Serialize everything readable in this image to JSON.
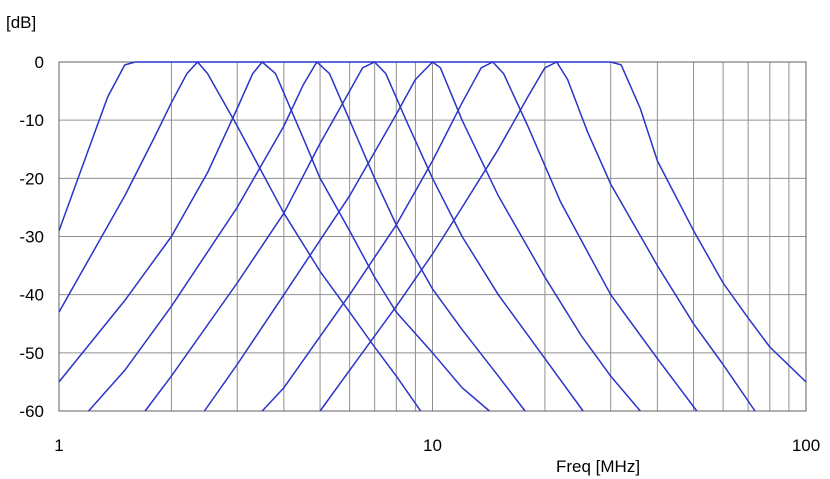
{
  "chart_data": {
    "type": "line",
    "xscale": "log",
    "xlim": [
      1,
      100
    ],
    "ylim": [
      -60,
      0
    ],
    "x_ticks": [
      "1",
      "10",
      "100"
    ],
    "y_ticks": [
      "0",
      "-10",
      "-20",
      "-30",
      "-40",
      "-50",
      "-60"
    ],
    "xlabel": "Freq [MHz]",
    "ylabel": "[dB]",
    "grid": true,
    "line_color": "#2a34c8",
    "grid_color": "#909090",
    "series": [
      {
        "x": [
          1.0,
          1.2,
          1.35,
          1.5,
          1.6,
          30,
          32,
          36,
          40,
          50,
          60,
          70,
          80,
          100
        ],
        "y": [
          -29,
          -15,
          -6,
          -0.5,
          0,
          0,
          -0.5,
          -8,
          -17,
          -29,
          -38,
          -44,
          -49,
          -55
        ]
      },
      {
        "x": [
          1.0,
          1.2,
          1.5,
          1.8,
          2.0,
          2.2,
          2.35,
          2.5,
          3.0,
          4.0,
          5.0,
          6.0,
          7.0,
          8.0,
          9.3
        ],
        "y": [
          -43,
          -34,
          -23,
          -13,
          -7,
          -2,
          0,
          -2,
          -11,
          -26,
          -36,
          -43,
          -49,
          -54,
          -60
        ]
      },
      {
        "x": [
          1.0,
          1.5,
          2.0,
          2.5,
          3.0,
          3.3,
          3.5,
          3.8,
          4.5,
          5.0,
          6.0,
          7.0,
          8.0,
          10,
          12,
          14.2
        ],
        "y": [
          -55,
          -41,
          -30,
          -19,
          -8,
          -2,
          0,
          -2,
          -13,
          -20,
          -29,
          -37,
          -43,
          -50,
          -56,
          -60
        ]
      },
      {
        "x": [
          1.2,
          1.5,
          2.0,
          3.0,
          4.0,
          4.5,
          4.9,
          5.3,
          6.0,
          7.0,
          8.0,
          10,
          12,
          15,
          17.7
        ],
        "y": [
          -60,
          -53,
          -42,
          -25,
          -11,
          -4,
          0,
          -2,
          -10,
          -20,
          -28,
          -39,
          -46,
          -54,
          -60
        ]
      },
      {
        "x": [
          1.7,
          2.0,
          3.0,
          4.0,
          5.0,
          6.0,
          6.5,
          7.0,
          7.5,
          8.5,
          10,
          12,
          15,
          20,
          25.3
        ],
        "y": [
          -60,
          -54,
          -38,
          -26,
          -14,
          -5,
          -1,
          0,
          -2,
          -10,
          -20,
          -30,
          -40,
          -51,
          -60
        ]
      },
      {
        "x": [
          2.45,
          3.0,
          4.0,
          6.0,
          8.0,
          9.0,
          10,
          10.5,
          12,
          15,
          20,
          25,
          30,
          36
        ],
        "y": [
          -60,
          -52,
          -40,
          -23,
          -9,
          -3,
          0,
          -1,
          -10,
          -23,
          -37,
          -47,
          -54,
          -60
        ]
      },
      {
        "x": [
          3.5,
          4.0,
          6.0,
          8.0,
          10,
          12,
          13.5,
          14.5,
          15.5,
          18,
          22,
          30,
          40,
          51
        ],
        "y": [
          -60,
          -56,
          -40,
          -28,
          -17,
          -7,
          -1,
          0,
          -2,
          -11,
          -24,
          -40,
          -51,
          -60
        ]
      },
      {
        "x": [
          5.0,
          6.0,
          8.0,
          10,
          12,
          15,
          18,
          20,
          21.5,
          23,
          26,
          30,
          40,
          50,
          60,
          73
        ],
        "y": [
          -60,
          -53,
          -42,
          -33,
          -25,
          -15,
          -6,
          -1,
          0,
          -3,
          -12,
          -21,
          -35,
          -45,
          -52,
          -60
        ]
      }
    ]
  }
}
